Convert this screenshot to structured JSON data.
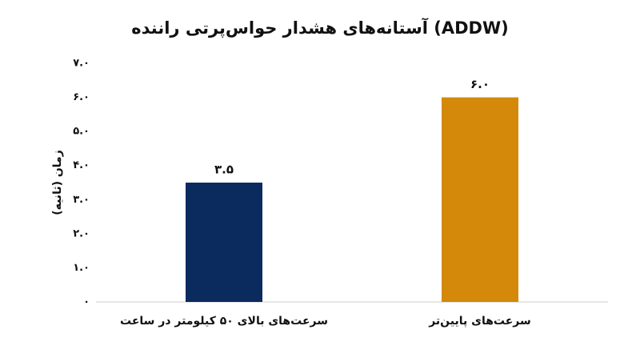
{
  "chart_data": {
    "type": "bar",
    "title": "آستانه‌های هشدار حواس‌پرتی راننده (ADDW)",
    "y_label": "زمان (ثانیه)",
    "categories": [
      "سرعت‌های بالای ۵۰ کیلومتر در ساعت",
      "سرعت‌های پایین‌تر"
    ],
    "values": [
      3.5,
      6.0
    ],
    "value_labels": [
      "۳.۵",
      "۶.۰"
    ],
    "colors": [
      "#0b2a5e",
      "#d4890a"
    ],
    "ylim": [
      0,
      7
    ],
    "yticks": [
      {
        "value": 0,
        "label": "۰"
      },
      {
        "value": 1,
        "label": "۱.۰"
      },
      {
        "value": 2,
        "label": "۲.۰"
      },
      {
        "value": 3,
        "label": "۳.۰"
      },
      {
        "value": 4,
        "label": "۴.۰"
      },
      {
        "value": 5,
        "label": "۵.۰"
      },
      {
        "value": 6,
        "label": "۶.۰"
      },
      {
        "value": 7,
        "label": "۷.۰"
      }
    ],
    "grid": false
  }
}
